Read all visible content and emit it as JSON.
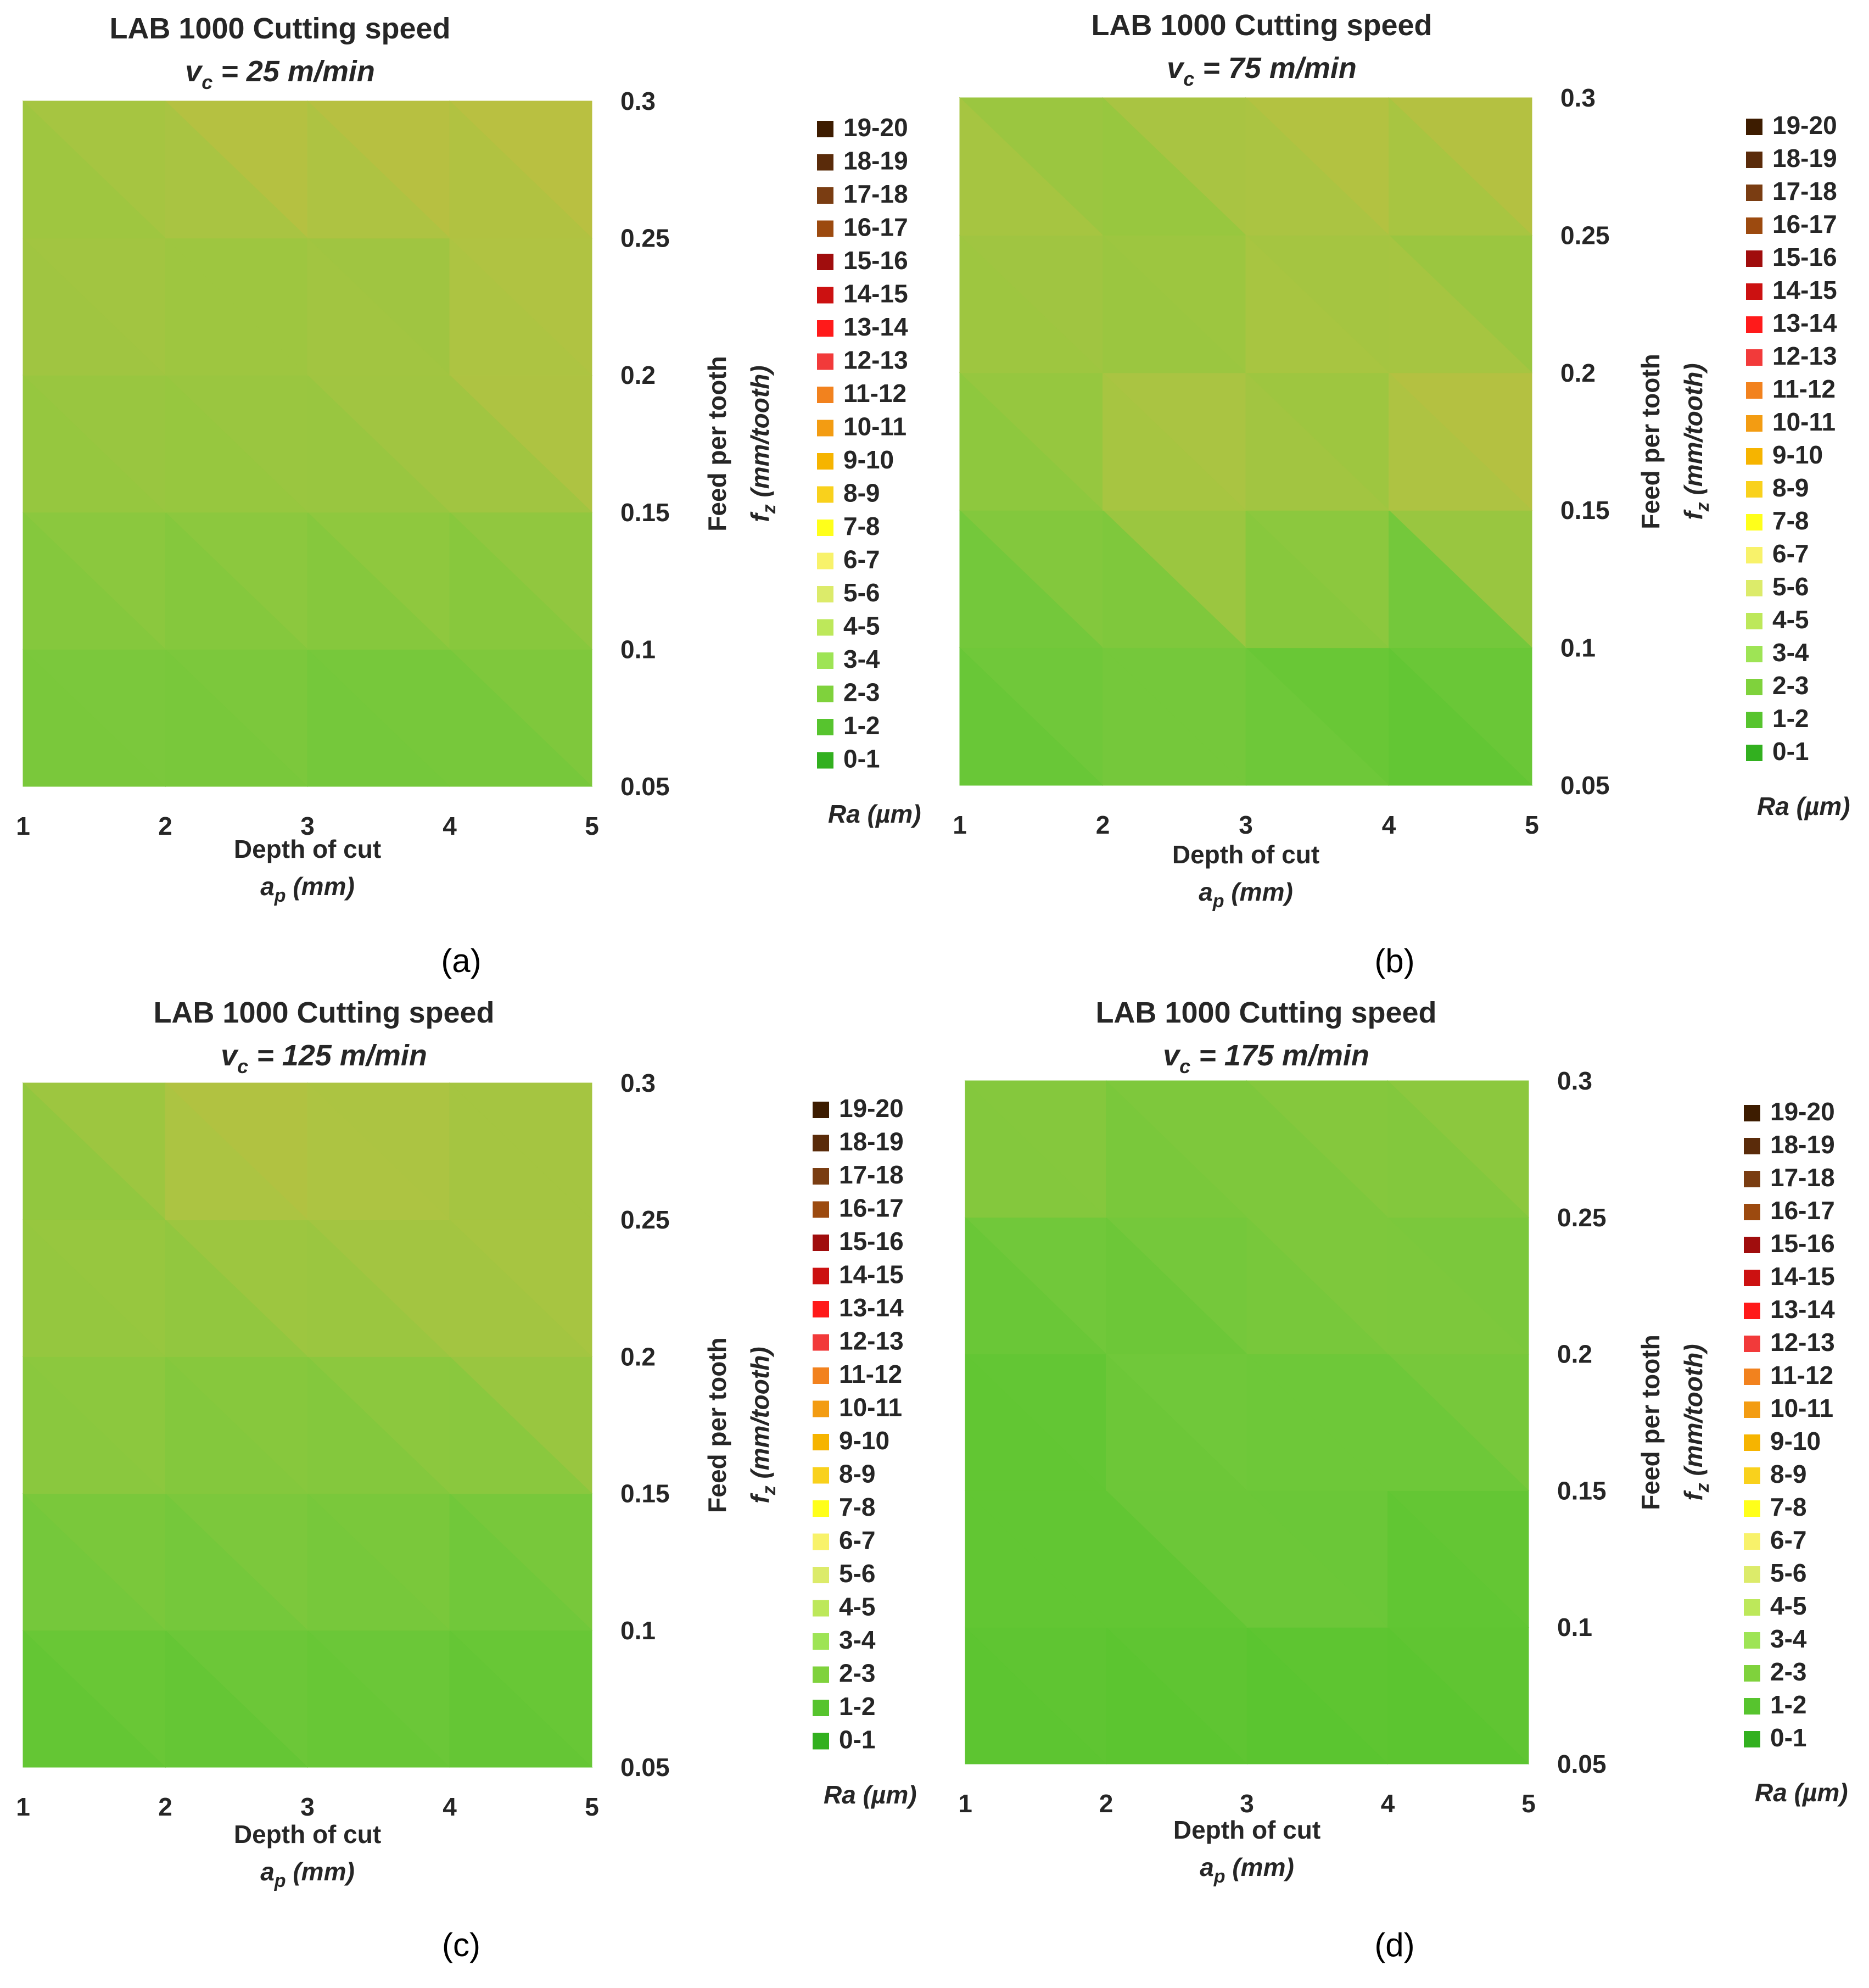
{
  "figure": {
    "captions": [
      "(a)",
      "(b)",
      "(c)",
      "(d)"
    ]
  },
  "chart_data": [
    {
      "type": "heatmap",
      "title": "LAB 1000 Cutting speed",
      "subtitle_var": "v",
      "subtitle_sub": "c",
      "subtitle_rest": " = 25 m/min",
      "xlabel": "Depth of cut",
      "xlabel_var": "a",
      "xlabel_sub": "p",
      "xlabel_unit": " (mm)",
      "ylabel": "Feed per tooth",
      "ylabel_var": "f",
      "ylabel_sub": "z",
      "ylabel_unit": " (mm/tooth)",
      "x": [
        1,
        2,
        3,
        4,
        5
      ],
      "y": [
        0.05,
        0.1,
        0.15,
        0.2,
        0.25,
        0.3
      ],
      "x_ticks": [
        "1",
        "2",
        "3",
        "4",
        "5"
      ],
      "y_ticks": [
        "0.05",
        "0.1",
        "0.15",
        "0.2",
        "0.25",
        "0.3"
      ],
      "xlim": [
        1,
        5
      ],
      "ylim": [
        0.05,
        0.3
      ],
      "z_label": "Ra (µm)",
      "z": [
        [
          2.3,
          2.2,
          2.4,
          1.6,
          2.4
        ],
        [
          2.6,
          2.4,
          2.5,
          2.7,
          2.5
        ],
        [
          3.2,
          3.3,
          3.2,
          3.4,
          3.6
        ],
        [
          3.4,
          3.5,
          3.6,
          4.0,
          4.8
        ],
        [
          4.0,
          3.6,
          3.5,
          3.4,
          4.4
        ],
        [
          3.2,
          4.6,
          5.4,
          5.0,
          4.8
        ]
      ]
    },
    {
      "type": "heatmap",
      "title": "LAB 1000 Cutting speed",
      "subtitle_var": "v",
      "subtitle_sub": "c",
      "subtitle_rest": " = 75 m/min",
      "xlabel": "Depth of cut",
      "xlabel_var": "a",
      "xlabel_sub": "p",
      "xlabel_unit": " (mm)",
      "ylabel": "Feed per tooth",
      "ylabel_var": "f",
      "ylabel_sub": "z",
      "ylabel_unit": " (mm/tooth)",
      "x": [
        1,
        2,
        3,
        4,
        5
      ],
      "y": [
        0.05,
        0.1,
        0.15,
        0.2,
        0.25,
        0.3
      ],
      "x_ticks": [
        "1",
        "2",
        "3",
        "4",
        "5"
      ],
      "y_ticks": [
        "0.05",
        "0.1",
        "0.15",
        "0.2",
        "0.25",
        "0.3"
      ],
      "xlim": [
        1,
        5
      ],
      "ylim": [
        0.05,
        0.3
      ],
      "z_label": "Ra (µm)",
      "z": [
        [
          1.2,
          2.2,
          2.3,
          1.3,
          1.5
        ],
        [
          1.8,
          2.0,
          2.2,
          1.6,
          2.2
        ],
        [
          2.6,
          3.4,
          4.8,
          2.6,
          5.4
        ],
        [
          3.2,
          3.3,
          3.7,
          4.4,
          3.6
        ],
        [
          4.2,
          3.4,
          3.5,
          3.4,
          3.4
        ],
        [
          3.8,
          3.2,
          5.0,
          4.8,
          5.2
        ]
      ]
    },
    {
      "type": "heatmap",
      "title": "LAB 1000 Cutting speed",
      "subtitle_var": "v",
      "subtitle_sub": "c",
      "subtitle_rest": " = 125 m/min",
      "xlabel": "Depth of cut",
      "xlabel_var": "a",
      "xlabel_sub": "p",
      "xlabel_unit": " (mm)",
      "ylabel": "Feed per tooth",
      "ylabel_var": "f",
      "ylabel_sub": "z",
      "ylabel_unit": " (mm/tooth)",
      "x": [
        1,
        2,
        3,
        4,
        5
      ],
      "y": [
        0.05,
        0.1,
        0.15,
        0.2,
        0.25,
        0.3
      ],
      "x_ticks": [
        "1",
        "2",
        "3",
        "4",
        "5"
      ],
      "y_ticks": [
        "0.05",
        "0.1",
        "0.15",
        "0.2",
        "0.25",
        "0.3"
      ],
      "xlim": [
        1,
        5
      ],
      "ylim": [
        0.05,
        0.3
      ],
      "z_label": "Ra (µm)",
      "z": [
        [
          1.4,
          1.4,
          1.4,
          1.4,
          1.5
        ],
        [
          1.8,
          1.9,
          2.2,
          1.8,
          1.7
        ],
        [
          2.8,
          2.4,
          2.7,
          2.6,
          2.6
        ],
        [
          3.6,
          3.0,
          2.8,
          3.6,
          4.0
        ],
        [
          3.2,
          3.8,
          4.0,
          3.6,
          3.9
        ],
        [
          2.6,
          4.2,
          4.6,
          3.8,
          3.6
        ]
      ]
    },
    {
      "type": "heatmap",
      "title": "LAB 1000 Cutting speed",
      "subtitle_var": "v",
      "subtitle_sub": "c",
      "subtitle_rest": " = 175 m/min",
      "xlabel": "Depth of cut",
      "xlabel_var": "a",
      "xlabel_sub": "p",
      "xlabel_unit": " (mm)",
      "ylabel": "Feed per tooth",
      "ylabel_var": "f",
      "ylabel_sub": "z",
      "ylabel_unit": " (mm/tooth)",
      "x": [
        1,
        2,
        3,
        4,
        5
      ],
      "y": [
        0.05,
        0.1,
        0.15,
        0.2,
        0.25,
        0.3
      ],
      "x_ticks": [
        "1",
        "2",
        "3",
        "4",
        "5"
      ],
      "y_ticks": [
        "0.05",
        "0.1",
        "0.15",
        "0.2",
        "0.25",
        "0.3"
      ],
      "xlim": [
        1,
        5
      ],
      "ylim": [
        0.05,
        0.3
      ],
      "z_label": "Ra (µm)",
      "z": [
        [
          1.2,
          1.1,
          1.1,
          0.9,
          1.3
        ],
        [
          1.4,
          1.4,
          1.5,
          1.4,
          1.4
        ],
        [
          1.5,
          1.4,
          2.6,
          1.4,
          1.8
        ],
        [
          1.4,
          1.6,
          1.8,
          2.6,
          2.4
        ],
        [
          2.3,
          2.2,
          2.5,
          2.4,
          2.4
        ],
        [
          3.6,
          2.4,
          2.6,
          3.2,
          3.4
        ]
      ]
    }
  ],
  "legend": {
    "label": "Ra (µm)",
    "entries": [
      {
        "label": "19-20",
        "color": "#3d1c00"
      },
      {
        "label": "18-19",
        "color": "#5a2b0a"
      },
      {
        "label": "17-18",
        "color": "#7a3d12"
      },
      {
        "label": "16-17",
        "color": "#9c4a0f"
      },
      {
        "label": "15-16",
        "color": "#a00d0d"
      },
      {
        "label": "14-15",
        "color": "#cc1111"
      },
      {
        "label": "13-14",
        "color": "#ff1a1a"
      },
      {
        "label": "12-13",
        "color": "#f23a3a"
      },
      {
        "label": "11-12",
        "color": "#f2821e"
      },
      {
        "label": "10-11",
        "color": "#f39c12"
      },
      {
        "label": "9-10",
        "color": "#f6b400"
      },
      {
        "label": "8-9",
        "color": "#f9d11c"
      },
      {
        "label": "7-8",
        "color": "#ffff1a"
      },
      {
        "label": "6-7",
        "color": "#f8f26a"
      },
      {
        "label": "5-6",
        "color": "#dceb6a"
      },
      {
        "label": "4-5",
        "color": "#bde85a"
      },
      {
        "label": "3-4",
        "color": "#9ee455"
      },
      {
        "label": "2-3",
        "color": "#7fd23c"
      },
      {
        "label": "1-2",
        "color": "#57c42e"
      },
      {
        "label": "0-1",
        "color": "#32b01f"
      }
    ]
  }
}
